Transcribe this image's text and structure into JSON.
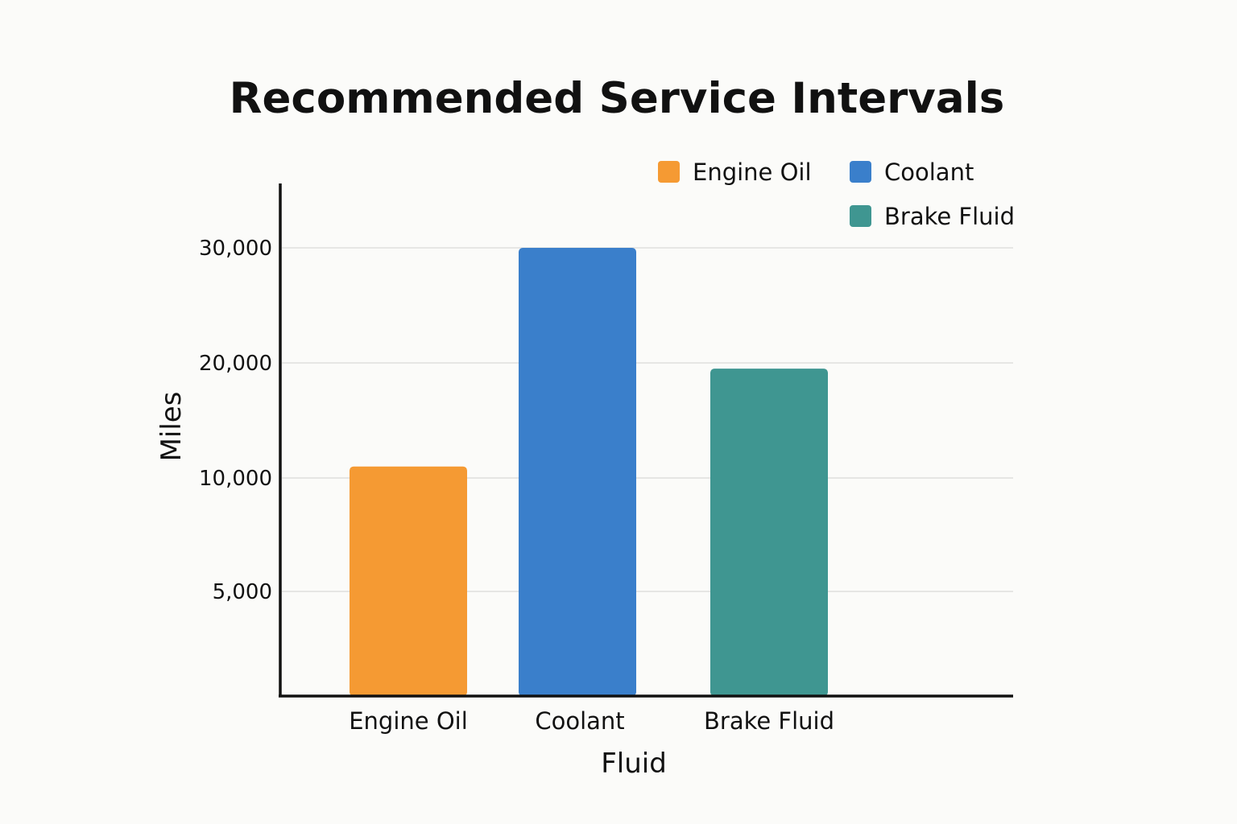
{
  "chart_data": {
    "type": "bar",
    "title": "Recommended Service Intervals",
    "xlabel": "Fluid",
    "ylabel": "Miles",
    "categories": [
      "Engine Oil",
      "Coolant",
      "Brake Fluid"
    ],
    "values": [
      11000,
      30000,
      19500
    ],
    "colors": [
      "#f59a33",
      "#3a7fcb",
      "#3f9691"
    ],
    "y_ticks": [
      5000,
      10000,
      20000,
      30000
    ],
    "y_tick_labels": [
      "5,000",
      "10,000",
      "20,000",
      "30,000"
    ],
    "grid": true,
    "legend": {
      "position": "top-right",
      "entries": [
        "Engine Oil",
        "Coolant",
        "Brake Fluid"
      ]
    }
  }
}
